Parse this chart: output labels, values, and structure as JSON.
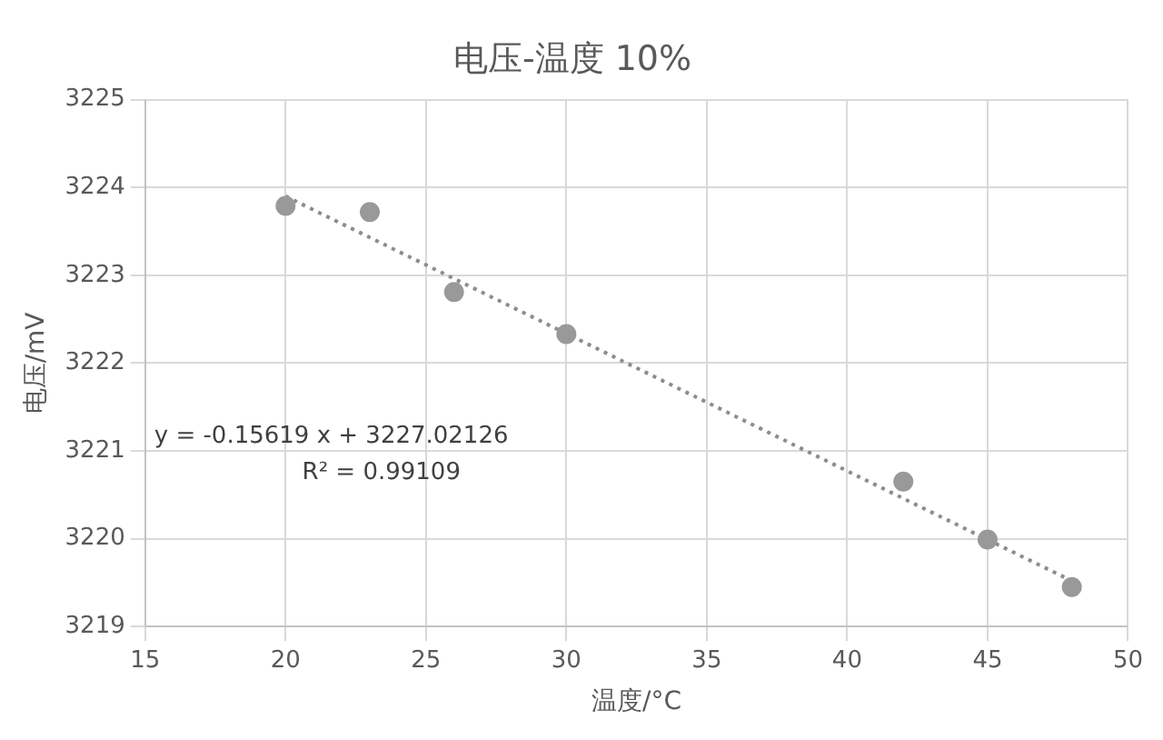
{
  "chart_data": {
    "type": "scatter",
    "title": "电压-温度 10%",
    "xlabel": "温度/°C",
    "ylabel": "电压/mV",
    "xlim": [
      15,
      50
    ],
    "xticks": [
      15,
      20,
      25,
      30,
      35,
      40,
      45,
      50
    ],
    "ylim": [
      3219,
      3225
    ],
    "yticks": [
      3219,
      3220,
      3221,
      3222,
      3223,
      3224,
      3225
    ],
    "grid": true,
    "marker": "circle",
    "annotations": [
      "y = -0.15619 x + 3227.02126",
      "R² = 0.99109"
    ],
    "series": [
      {
        "color": "#999999",
        "x": [
          20,
          23,
          26,
          30,
          42,
          45,
          48
        ],
        "values": [
          3223.79,
          3223.72,
          3222.81,
          3222.33,
          3220.65,
          3219.99,
          3219.45
        ]
      },
      {
        "type": "line",
        "color": "#8c8c8c",
        "line_style": "dotted",
        "marker": "none",
        "x": [
          20,
          48
        ],
        "values": [
          3223.9,
          3219.52
        ]
      }
    ]
  }
}
